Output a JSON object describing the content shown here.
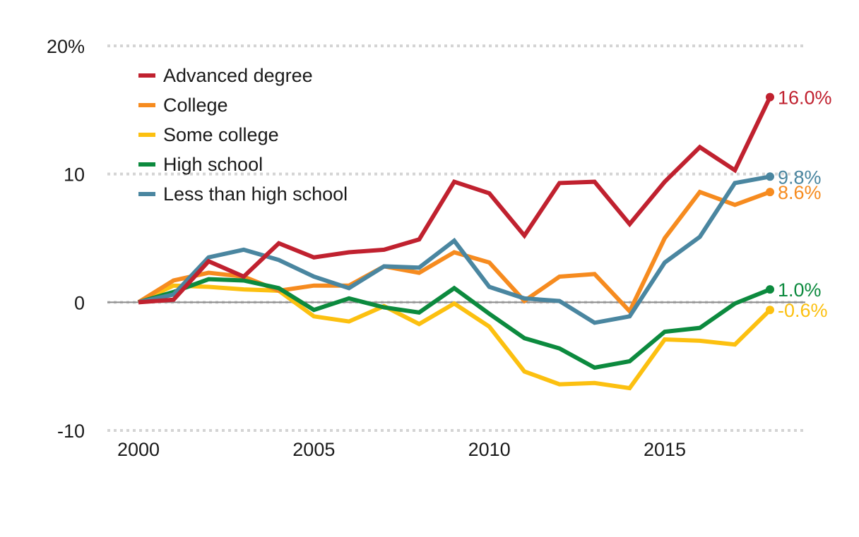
{
  "chart_data": {
    "type": "line",
    "x": [
      2000,
      2001,
      2002,
      2003,
      2004,
      2005,
      2006,
      2007,
      2008,
      2009,
      2010,
      2011,
      2012,
      2013,
      2014,
      2015,
      2016,
      2017,
      2018
    ],
    "ylim": [
      -10,
      20
    ],
    "yticks": [
      -10,
      0,
      10,
      20
    ],
    "ytick_labels": [
      "-10",
      "0",
      "10",
      "20%"
    ],
    "xticks": [
      2000,
      2005,
      2010,
      2015
    ],
    "xtick_labels": [
      "2000",
      "2005",
      "2010",
      "2015"
    ],
    "grid": "horizontal dotted",
    "legend_position": "top-left",
    "series": [
      {
        "name": "Advanced degree",
        "color": "#c0212f",
        "values": [
          0,
          0.2,
          3.2,
          2.0,
          4.6,
          3.5,
          3.9,
          4.1,
          4.9,
          9.4,
          8.5,
          5.2,
          9.3,
          9.4,
          6.1,
          9.4,
          12.1,
          10.3,
          16.0
        ],
        "end_label": "16.0%"
      },
      {
        "name": "College",
        "color": "#f68b1f",
        "values": [
          0,
          1.7,
          2.3,
          2.0,
          0.9,
          1.3,
          1.3,
          2.8,
          2.3,
          3.9,
          3.1,
          0.1,
          2.0,
          2.2,
          -0.7,
          5.0,
          8.6,
          7.6,
          8.6
        ],
        "end_label": "8.6%"
      },
      {
        "name": "Some college",
        "color": "#fcc010",
        "values": [
          0,
          1.3,
          1.2,
          1.0,
          0.9,
          -1.1,
          -1.5,
          -0.3,
          -1.7,
          -0.1,
          -1.9,
          -5.4,
          -6.4,
          -6.3,
          -6.7,
          -2.9,
          -3.0,
          -3.3,
          -0.6
        ],
        "end_label": "-0.6%"
      },
      {
        "name": "High school",
        "color": "#0c8a3e",
        "values": [
          0,
          0.8,
          1.8,
          1.7,
          1.1,
          -0.6,
          0.3,
          -0.4,
          -0.8,
          1.1,
          -0.9,
          -2.8,
          -3.6,
          -5.1,
          -4.6,
          -2.3,
          -2.0,
          -0.1,
          1.0
        ],
        "end_label": "1.0%"
      },
      {
        "name": "Less than high school",
        "color": "#4a86a0",
        "values": [
          0,
          0.6,
          3.5,
          4.1,
          3.3,
          2.0,
          1.1,
          2.8,
          2.7,
          4.8,
          1.2,
          0.3,
          0.1,
          -1.6,
          -1.1,
          3.1,
          5.1,
          9.3,
          9.8
        ],
        "end_label": "9.8%"
      }
    ]
  }
}
